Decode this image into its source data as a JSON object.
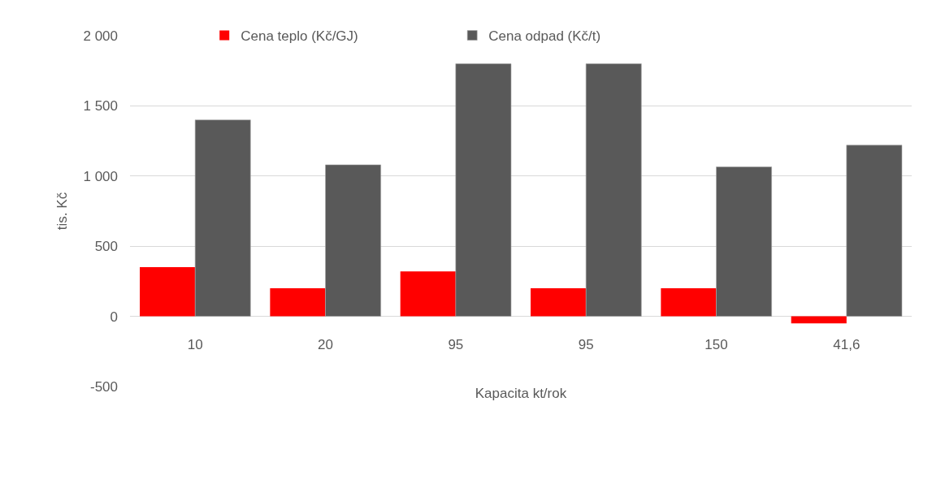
{
  "chart_data": {
    "type": "bar",
    "xlabel": "Kapacita kt/rok",
    "ylabel": "tis. Kč",
    "categories": [
      "10",
      "20",
      "95",
      "95",
      "150",
      "41,6"
    ],
    "series": [
      {
        "name": "Cena teplo (Kč/GJ)",
        "color": "#ff0000",
        "values": [
          350,
          200,
          320,
          200,
          200,
          -50
        ]
      },
      {
        "name": "Cena odpad (Kč/t)",
        "color": "#595959",
        "values": [
          1400,
          1080,
          1800,
          1800,
          1065,
          1220
        ]
      }
    ],
    "ylim": [
      -500,
      2000
    ],
    "yticks": [
      {
        "value": -500,
        "label": "-500"
      },
      0,
      500,
      {
        "value": 1000,
        "label": "1 000"
      },
      {
        "value": 1500,
        "label": "1 500"
      },
      {
        "value": 2000,
        "label": "2 000"
      }
    ],
    "grid": "y",
    "legend": "top"
  }
}
